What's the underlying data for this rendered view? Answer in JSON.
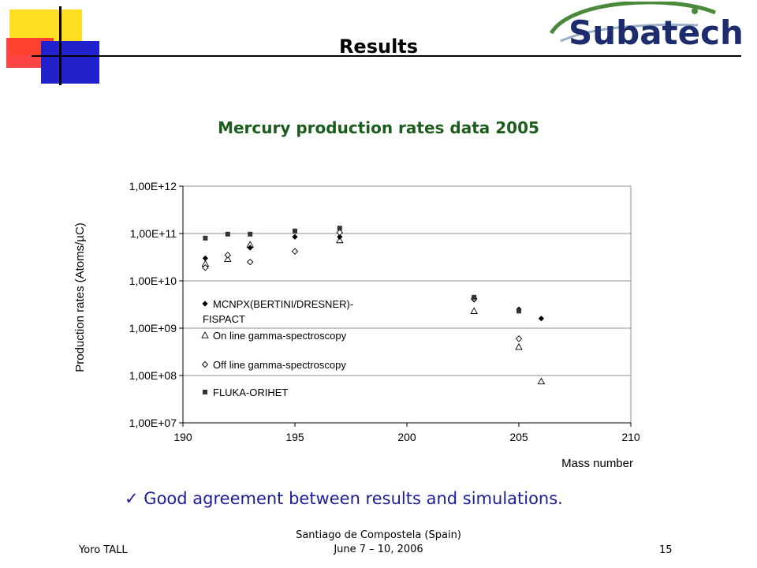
{
  "slide": {
    "title": "Results",
    "remark_check": "✓",
    "remark": "Good agreement between results and simulations.",
    "footer_author": "Yoro TALL",
    "footer_venue_line1": "Santiago de Compostela (Spain)",
    "footer_venue_line2": "June 7 – 10, 2006",
    "page_number": "15",
    "logo_text": "Subatech",
    "colors": {
      "chart_title": "#1c5c1c",
      "remark": "#1c1c9c",
      "logo_ring": "#4a8a3a",
      "logo_text": "#1c2c6c"
    }
  },
  "chart_data": {
    "type": "scatter",
    "title": "Mercury production rates data 2005",
    "xlabel": "Mass number",
    "ylabel": "Production rates (Atoms/µC)",
    "xlim": [
      190,
      210
    ],
    "ylim": [
      10000000,
      1000000000000
    ],
    "y_scale": "log",
    "x_ticks": [
      190,
      195,
      200,
      205,
      210
    ],
    "x_tick_labels": [
      "190",
      "195",
      "200",
      "205",
      "210"
    ],
    "y_ticks": [
      10000000,
      100000000,
      1000000000,
      10000000000,
      100000000000,
      1000000000000
    ],
    "y_tick_labels": [
      "1,00E+07",
      "1,00E+08",
      "1,00E+09",
      "1,00E+10",
      "1,00E+11",
      "1,00E+12"
    ],
    "grid": "horizontal",
    "legend_position": "left",
    "series": [
      {
        "name": "MCNPX(BERTINI/DRESNER)-FISPACT",
        "name_lines": [
          "MCNPX(BERTINI/DRESNER)-",
          "FISPACT"
        ],
        "marker": "diamond-filled",
        "x": [
          191,
          193,
          195,
          197,
          203,
          205,
          206
        ],
        "y": [
          30000000000,
          50000000000,
          85000000000,
          85000000000,
          4000000000,
          2500000000,
          1600000000
        ]
      },
      {
        "name": "On line gamma-spectroscopy",
        "marker": "triangle-open",
        "x": [
          191,
          192,
          193,
          197,
          203,
          205,
          206
        ],
        "y": [
          23000000000,
          29000000000,
          58000000000,
          72000000000,
          2300000000,
          400000000,
          75000000
        ]
      },
      {
        "name": "Off line gamma-spectroscopy",
        "marker": "diamond-open",
        "x": [
          191,
          192,
          193,
          195,
          197,
          203,
          205
        ],
        "y": [
          19000000000,
          35000000000,
          25000000000,
          42000000000,
          105000000000,
          4200000000,
          600000000
        ]
      },
      {
        "name": "FLUKA-ORIHET",
        "marker": "square-filled",
        "x": [
          191,
          192,
          193,
          195,
          197,
          203,
          205
        ],
        "y": [
          80000000000,
          97000000000,
          97000000000,
          113000000000,
          130000000000,
          4500000000,
          2300000000
        ]
      }
    ]
  }
}
